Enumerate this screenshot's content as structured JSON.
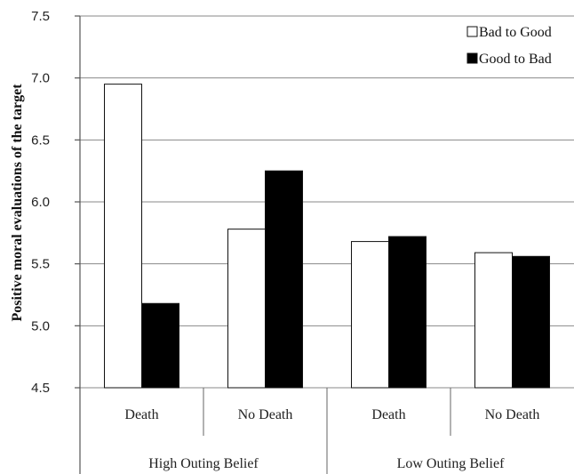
{
  "chart_data": {
    "type": "bar",
    "ylabel": "Positive moral evaluations of the target",
    "ylim": [
      4.5,
      7.5
    ],
    "yticks": [
      "4.5",
      "5.0",
      "5.5",
      "6.0",
      "6.5",
      "7.0",
      "7.5"
    ],
    "grid": true,
    "legend_position": "top-right",
    "categories": [
      "Death",
      "No Death",
      "Death",
      "No Death"
    ],
    "groups": [
      "High Outing Belief",
      "Low Outing Belief"
    ],
    "series": [
      {
        "name": "Bad to Good",
        "color": "#ffffff",
        "values": [
          6.95,
          5.78,
          5.68,
          5.59
        ]
      },
      {
        "name": "Good to Bad",
        "color": "#000000",
        "values": [
          5.18,
          6.25,
          5.72,
          5.56
        ]
      }
    ]
  }
}
